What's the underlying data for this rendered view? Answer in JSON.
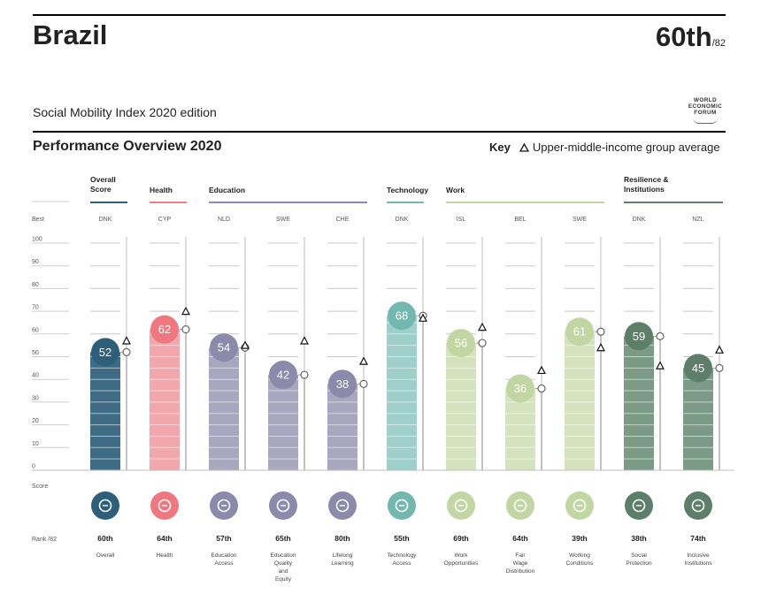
{
  "header": {
    "country": "Brazil",
    "rank": "60th",
    "rank_total": "/82",
    "edition": "Social Mobility Index 2020 edition",
    "logo_lines": [
      "WORLD",
      "ECONOMIC",
      "FORUM"
    ]
  },
  "section": {
    "title": "Performance Overview 2020",
    "key_label": "Key",
    "key_text": "Upper-middle-income group average"
  },
  "row_labels": {
    "best": "Best",
    "score": "Score",
    "rank": "Rank /82"
  },
  "colors": {
    "overall": "#2e5f7a",
    "health": "#f27c84",
    "education": "#8c8aab",
    "technology": "#72b7b0",
    "work": "#c1d6a3",
    "resilience": "#5d7f69"
  },
  "chart_data": {
    "type": "bar",
    "ylim": [
      0,
      100
    ],
    "yticks": [
      0,
      10,
      20,
      30,
      40,
      50,
      60,
      70,
      80,
      90,
      100
    ],
    "groups": [
      {
        "name": "Overall Score",
        "lines": [
          "Overall",
          "Score"
        ],
        "color_key": "overall",
        "pillars": [
          0
        ]
      },
      {
        "name": "Health",
        "lines": [
          "Health"
        ],
        "color_key": "health",
        "pillars": [
          1
        ]
      },
      {
        "name": "Education",
        "lines": [
          "Education"
        ],
        "color_key": "education",
        "pillars": [
          2,
          3,
          4
        ]
      },
      {
        "name": "Technology",
        "lines": [
          "Technology"
        ],
        "color_key": "technology",
        "pillars": [
          5
        ]
      },
      {
        "name": "Work",
        "lines": [
          "Work"
        ],
        "color_key": "work",
        "pillars": [
          6,
          7,
          8
        ]
      },
      {
        "name": "Resilience & Institutions",
        "lines": [
          "Resilience &",
          "Institutions"
        ],
        "color_key": "resilience",
        "pillars": [
          9,
          10
        ]
      }
    ],
    "pillars": [
      {
        "label": [
          "Overall"
        ],
        "best": "DNK",
        "score": 52,
        "avg": 57,
        "rank": "60th",
        "color": "#3f6c85",
        "circle": "#2e5f7a",
        "icon": "ribbon-icon"
      },
      {
        "label": [
          "Health"
        ],
        "best": "CYP",
        "score": 62,
        "avg": 70,
        "rank": "64th",
        "color": "#f2a7ac",
        "circle": "#ef7880",
        "icon": "medical-cross-icon"
      },
      {
        "label": [
          "Education",
          "Access"
        ],
        "best": "NLD",
        "score": 54,
        "avg": 55,
        "rank": "57th",
        "color": "#a8a7bf",
        "circle": "#8c8aab",
        "icon": "graduation-cap-icon"
      },
      {
        "label": [
          "Education",
          "Quality",
          "and",
          "Equity"
        ],
        "best": "SWE",
        "score": 42,
        "avg": 57,
        "rank": "65th",
        "color": "#a8a7bf",
        "circle": "#8c8aab",
        "icon": "medal-icon"
      },
      {
        "label": [
          "Lifelong",
          "Learning"
        ],
        "best": "CHE",
        "score": 38,
        "avg": 48,
        "rank": "80th",
        "color": "#a8a7bf",
        "circle": "#8c8aab",
        "icon": "head-book-icon"
      },
      {
        "label": [
          "Technology",
          "Access"
        ],
        "best": "DNK",
        "score": 68,
        "avg": 67,
        "rank": "55th",
        "color": "#9fcfca",
        "circle": "#72b7b0",
        "icon": "network-icon"
      },
      {
        "label": [
          "Work",
          "Opportunities"
        ],
        "best": "ISL",
        "score": 56,
        "avg": 63,
        "rank": "69th",
        "color": "#d4e3bd",
        "circle": "#c1d6a3",
        "icon": "wrench-icon"
      },
      {
        "label": [
          "Fair",
          "Wage",
          "Distribution"
        ],
        "best": "BEL",
        "score": 36,
        "avg": 44,
        "rank": "64th",
        "color": "#d4e3bd",
        "circle": "#c1d6a3",
        "icon": "coins-icon"
      },
      {
        "label": [
          "Working",
          "Conditions"
        ],
        "best": "SWE",
        "score": 61,
        "avg": 54,
        "rank": "39th",
        "color": "#d4e3bd",
        "circle": "#c1d6a3",
        "icon": "document-icon"
      },
      {
        "label": [
          "Social",
          "Protection"
        ],
        "best": "DNK",
        "score": 59,
        "avg": 46,
        "rank": "38th",
        "color": "#7c9b87",
        "circle": "#5d7f69",
        "icon": "hands-heart-icon"
      },
      {
        "label": [
          "Inclusive",
          "Institutions"
        ],
        "best": "NZL",
        "score": 45,
        "avg": 53,
        "rank": "74th",
        "color": "#7c9b87",
        "circle": "#5d7f69",
        "icon": "scales-icon"
      }
    ]
  }
}
